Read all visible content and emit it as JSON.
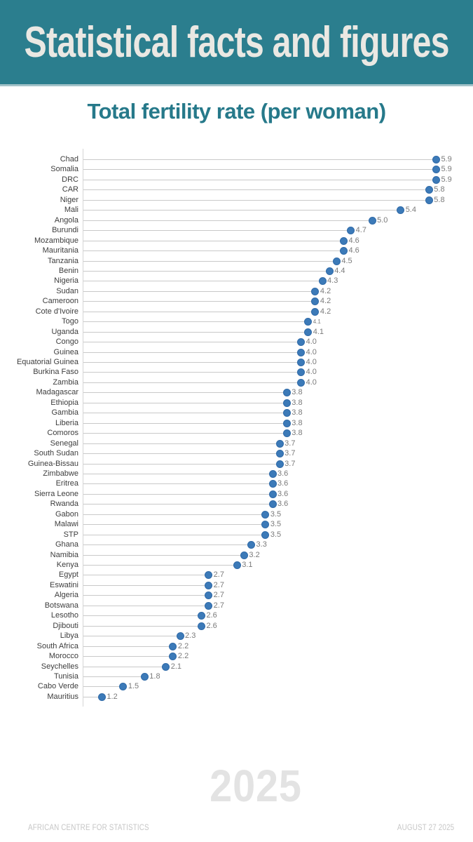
{
  "header": {
    "title": "Statistical facts and figures",
    "bg_color": "#2b7e8e",
    "text_color": "#eae8e3"
  },
  "chart": {
    "title": "Total fertility rate (per woman)",
    "title_color": "#26798a"
  },
  "chart_data": {
    "type": "bar",
    "style": "lollipop",
    "orientation": "horizontal",
    "title": "Total fertility rate (per woman)",
    "xlabel": "",
    "ylabel": "",
    "xlim": [
      0.93,
      6.27
    ],
    "grid": false,
    "legend": false,
    "categories": [
      "Chad",
      "Somalia",
      "DRC",
      "CAR",
      "Niger",
      "Mali",
      "Angola",
      "Burundi",
      "Mozambique",
      "Mauritania",
      "Tanzania",
      "Benin",
      "Nigeria",
      "Sudan",
      "Cameroon",
      "Cote d'Ivoire",
      "Togo",
      "Uganda",
      "Congo",
      "Guinea",
      "Equatorial Guinea",
      "Burkina Faso",
      "Zambia",
      "Madagascar",
      "Ethiopia",
      "Gambia",
      "Liberia",
      "Comoros",
      "Senegal",
      "South Sudan",
      "Guinea-Bissau",
      "Zimbabwe",
      "Eritrea",
      "Sierra Leone",
      "Rwanda",
      "Gabon",
      "Malawi",
      "STP",
      "Ghana",
      "Namibia",
      "Kenya",
      "Egypt",
      "Eswatini",
      "Algeria",
      "Botswana",
      "Lesotho",
      "Djibouti",
      "Libya",
      "South Africa",
      "Morocco",
      "Seychelles",
      "Tunisia",
      "Cabo Verde",
      "Mauritius"
    ],
    "values": [
      5.9,
      5.9,
      5.9,
      5.8,
      5.8,
      5.4,
      5.0,
      4.7,
      4.6,
      4.6,
      4.5,
      4.4,
      4.3,
      4.2,
      4.2,
      4.2,
      4.1,
      4.1,
      4.0,
      4.0,
      4.0,
      4.0,
      4.0,
      3.8,
      3.8,
      3.8,
      3.8,
      3.8,
      3.7,
      3.7,
      3.7,
      3.6,
      3.6,
      3.6,
      3.6,
      3.5,
      3.5,
      3.5,
      3.3,
      3.2,
      3.1,
      2.7,
      2.7,
      2.7,
      2.7,
      2.6,
      2.6,
      2.3,
      2.2,
      2.2,
      2.1,
      1.8,
      1.5,
      1.2
    ],
    "small_value_label_index": 16,
    "dot_color": "#3c7ab8",
    "dot_border_color": "#2f6aa8",
    "stem_color": "#c9c9c9",
    "axis_color": "#d6d6d6",
    "value_label_color": "#7b7b7b",
    "category_label_color": "#3d3d3d"
  },
  "watermark": {
    "year": "2025"
  },
  "footer": {
    "left": "AFRICAN CENTRE FOR STATISTICS",
    "right": "AUGUST 27 2025"
  }
}
